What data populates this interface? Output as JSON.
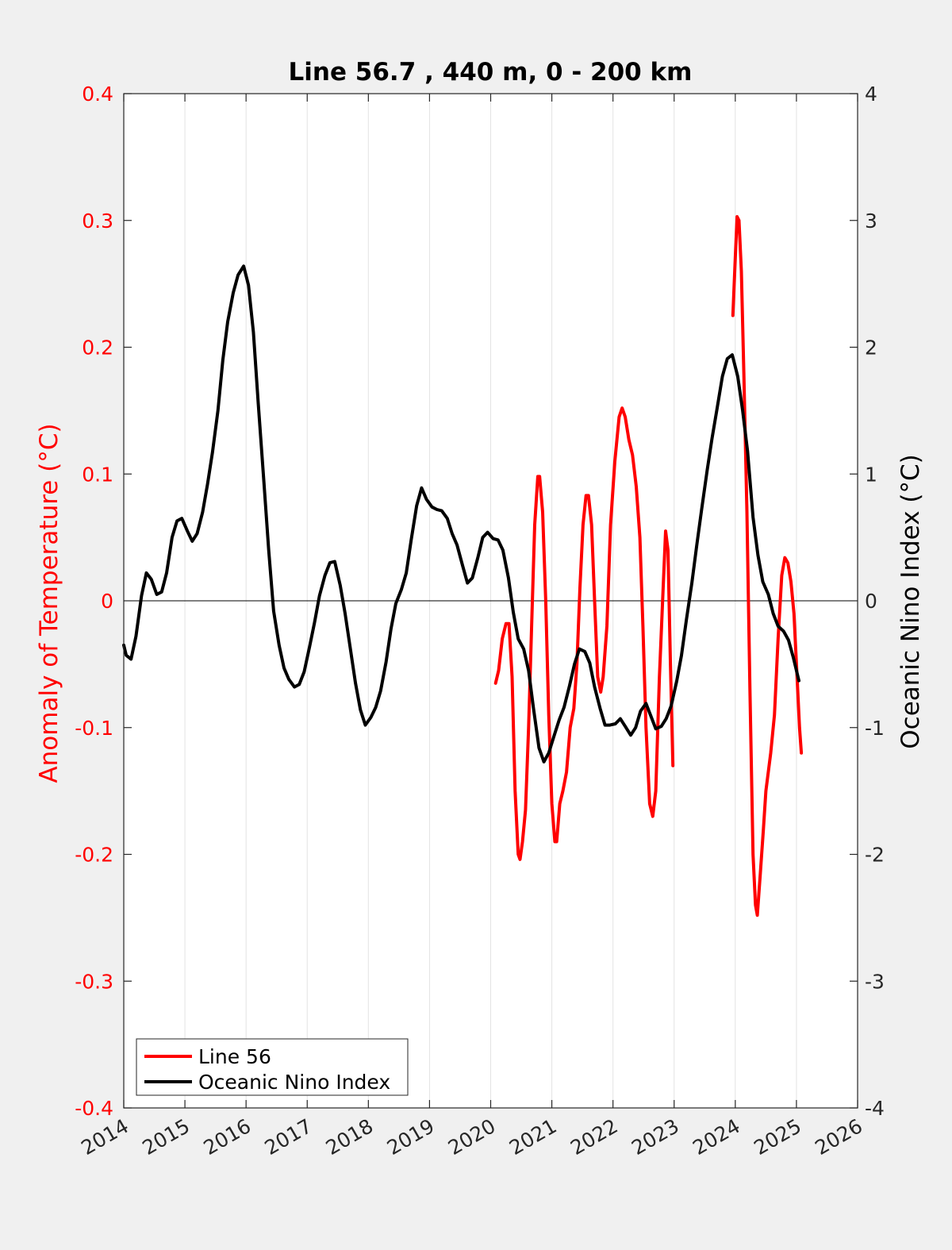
{
  "chart_data": {
    "type": "line",
    "title": "Line 56.7 , 440 m, 0 - 200 km",
    "xlabel": "",
    "ylabel_left": "Anomaly of Temperature (°C)",
    "ylabel_right": "Oceanic Nino Index (°C)",
    "xlim": [
      2014,
      2026
    ],
    "ylim_left": [
      -0.4,
      0.4
    ],
    "ylim_right": [
      -4,
      4
    ],
    "x_ticks": [
      "2014",
      "2015",
      "2016",
      "2017",
      "2018",
      "2019",
      "2020",
      "2021",
      "2022",
      "2023",
      "2024",
      "2025",
      "2026"
    ],
    "y_left_ticks": [
      "-0.4",
      "-0.3",
      "-0.2",
      "-0.1",
      "0",
      "0.1",
      "0.2",
      "0.3",
      "0.4"
    ],
    "y_right_ticks": [
      "-4",
      "-3",
      "-2",
      "-1",
      "0",
      "1",
      "2",
      "3",
      "4"
    ],
    "grid": "vertical",
    "legend_position": "bottom-left",
    "legend": [
      "Line 56",
      "Oceanic Nino Index"
    ],
    "colors": {
      "line56": "#ff0000",
      "oni": "#000000"
    },
    "series": [
      {
        "name": "Line 56",
        "axis": "left",
        "segments": [
          [
            [
              2020.08,
              -0.065
            ],
            [
              2020.13,
              -0.055
            ],
            [
              2020.19,
              -0.03
            ],
            [
              2020.25,
              -0.018
            ],
            [
              2020.3,
              -0.018
            ],
            [
              2020.35,
              -0.06
            ],
            [
              2020.4,
              -0.15
            ],
            [
              2020.45,
              -0.2
            ],
            [
              2020.48,
              -0.204
            ],
            [
              2020.52,
              -0.19
            ],
            [
              2020.57,
              -0.165
            ],
            [
              2020.62,
              -0.1
            ],
            [
              2020.67,
              -0.02
            ],
            [
              2020.72,
              0.06
            ],
            [
              2020.77,
              0.098
            ],
            [
              2020.8,
              0.098
            ],
            [
              2020.85,
              0.07
            ],
            [
              2020.9,
              0.0
            ],
            [
              2020.95,
              -0.09
            ],
            [
              2021.0,
              -0.16
            ],
            [
              2021.05,
              -0.19
            ],
            [
              2021.08,
              -0.19
            ],
            [
              2021.13,
              -0.16
            ],
            [
              2021.18,
              -0.15
            ],
            [
              2021.24,
              -0.135
            ],
            [
              2021.3,
              -0.1
            ],
            [
              2021.36,
              -0.085
            ],
            [
              2021.41,
              -0.05
            ],
            [
              2021.46,
              0.01
            ],
            [
              2021.51,
              0.06
            ],
            [
              2021.56,
              0.083
            ],
            [
              2021.6,
              0.083
            ],
            [
              2021.65,
              0.06
            ],
            [
              2021.7,
              0.0
            ],
            [
              2021.75,
              -0.06
            ],
            [
              2021.8,
              -0.072
            ],
            [
              2021.84,
              -0.06
            ],
            [
              2021.9,
              -0.02
            ],
            [
              2021.96,
              0.06
            ],
            [
              2022.03,
              0.11
            ],
            [
              2022.1,
              0.145
            ],
            [
              2022.15,
              0.152
            ],
            [
              2022.2,
              0.145
            ],
            [
              2022.26,
              0.127
            ],
            [
              2022.32,
              0.115
            ],
            [
              2022.38,
              0.09
            ],
            [
              2022.44,
              0.05
            ],
            [
              2022.49,
              -0.02
            ],
            [
              2022.54,
              -0.1
            ],
            [
              2022.6,
              -0.16
            ],
            [
              2022.65,
              -0.17
            ],
            [
              2022.7,
              -0.15
            ],
            [
              2022.76,
              -0.06
            ],
            [
              2022.82,
              0.01
            ],
            [
              2022.86,
              0.055
            ],
            [
              2022.9,
              0.04
            ],
            [
              2022.94,
              -0.05
            ],
            [
              2022.98,
              -0.13
            ]
          ],
          [
            [
              2023.96,
              0.225
            ],
            [
              2024.0,
              0.27
            ],
            [
              2024.03,
              0.303
            ],
            [
              2024.06,
              0.3
            ],
            [
              2024.1,
              0.26
            ],
            [
              2024.14,
              0.18
            ],
            [
              2024.19,
              0.07
            ],
            [
              2024.24,
              -0.07
            ],
            [
              2024.29,
              -0.2
            ],
            [
              2024.33,
              -0.24
            ],
            [
              2024.36,
              -0.248
            ],
            [
              2024.41,
              -0.215
            ],
            [
              2024.46,
              -0.18
            ],
            [
              2024.5,
              -0.15
            ],
            [
              2024.58,
              -0.12
            ],
            [
              2024.64,
              -0.09
            ],
            [
              2024.7,
              -0.03
            ],
            [
              2024.76,
              0.02
            ],
            [
              2024.81,
              0.034
            ],
            [
              2024.86,
              0.03
            ],
            [
              2024.91,
              0.015
            ],
            [
              2024.96,
              -0.01
            ],
            [
              2025.01,
              -0.06
            ],
            [
              2025.05,
              -0.1
            ],
            [
              2025.08,
              -0.12
            ]
          ]
        ]
      },
      {
        "name": "Oceanic Nino Index",
        "axis": "right",
        "segments": [
          [
            [
              2014.0,
              -0.35
            ],
            [
              2014.04,
              -0.43
            ],
            [
              2014.12,
              -0.46
            ],
            [
              2014.2,
              -0.28
            ],
            [
              2014.29,
              0.04
            ],
            [
              2014.37,
              0.22
            ],
            [
              2014.45,
              0.17
            ],
            [
              2014.54,
              0.05
            ],
            [
              2014.62,
              0.07
            ],
            [
              2014.7,
              0.22
            ],
            [
              2014.79,
              0.5
            ],
            [
              2014.87,
              0.63
            ],
            [
              2014.95,
              0.65
            ],
            [
              2015.04,
              0.55
            ],
            [
              2015.12,
              0.47
            ],
            [
              2015.2,
              0.53
            ],
            [
              2015.29,
              0.7
            ],
            [
              2015.37,
              0.92
            ],
            [
              2015.45,
              1.17
            ],
            [
              2015.54,
              1.5
            ],
            [
              2015.62,
              1.9
            ],
            [
              2015.7,
              2.2
            ],
            [
              2015.79,
              2.43
            ],
            [
              2015.87,
              2.57
            ],
            [
              2015.96,
              2.64
            ],
            [
              2016.04,
              2.49
            ],
            [
              2016.12,
              2.12
            ],
            [
              2016.2,
              1.55
            ],
            [
              2016.29,
              0.95
            ],
            [
              2016.37,
              0.4
            ],
            [
              2016.45,
              -0.08
            ],
            [
              2016.54,
              -0.35
            ],
            [
              2016.62,
              -0.53
            ],
            [
              2016.7,
              -0.62
            ],
            [
              2016.79,
              -0.68
            ],
            [
              2016.87,
              -0.66
            ],
            [
              2016.95,
              -0.56
            ],
            [
              2017.04,
              -0.36
            ],
            [
              2017.12,
              -0.17
            ],
            [
              2017.2,
              0.04
            ],
            [
              2017.29,
              0.2
            ],
            [
              2017.37,
              0.3
            ],
            [
              2017.45,
              0.31
            ],
            [
              2017.54,
              0.12
            ],
            [
              2017.62,
              -0.1
            ],
            [
              2017.7,
              -0.36
            ],
            [
              2017.79,
              -0.65
            ],
            [
              2017.87,
              -0.86
            ],
            [
              2017.95,
              -0.98
            ],
            [
              2018.04,
              -0.92
            ],
            [
              2018.12,
              -0.84
            ],
            [
              2018.2,
              -0.71
            ],
            [
              2018.29,
              -0.48
            ],
            [
              2018.37,
              -0.22
            ],
            [
              2018.45,
              -0.02
            ],
            [
              2018.54,
              0.09
            ],
            [
              2018.62,
              0.22
            ],
            [
              2018.7,
              0.48
            ],
            [
              2018.79,
              0.75
            ],
            [
              2018.87,
              0.89
            ],
            [
              2018.95,
              0.8
            ],
            [
              2019.04,
              0.74
            ],
            [
              2019.12,
              0.72
            ],
            [
              2019.2,
              0.71
            ],
            [
              2019.29,
              0.65
            ],
            [
              2019.37,
              0.53
            ],
            [
              2019.45,
              0.44
            ],
            [
              2019.54,
              0.28
            ],
            [
              2019.62,
              0.14
            ],
            [
              2019.7,
              0.18
            ],
            [
              2019.79,
              0.34
            ],
            [
              2019.87,
              0.5
            ],
            [
              2019.95,
              0.54
            ],
            [
              2020.04,
              0.49
            ],
            [
              2020.12,
              0.48
            ],
            [
              2020.2,
              0.4
            ],
            [
              2020.29,
              0.18
            ],
            [
              2020.37,
              -0.09
            ],
            [
              2020.45,
              -0.3
            ],
            [
              2020.54,
              -0.38
            ],
            [
              2020.62,
              -0.55
            ],
            [
              2020.7,
              -0.85
            ],
            [
              2020.79,
              -1.16
            ],
            [
              2020.87,
              -1.27
            ],
            [
              2020.95,
              -1.2
            ],
            [
              2021.04,
              -1.06
            ],
            [
              2021.12,
              -0.94
            ],
            [
              2021.2,
              -0.84
            ],
            [
              2021.29,
              -0.67
            ],
            [
              2021.37,
              -0.5
            ],
            [
              2021.45,
              -0.38
            ],
            [
              2021.54,
              -0.4
            ],
            [
              2021.62,
              -0.49
            ],
            [
              2021.7,
              -0.68
            ],
            [
              2021.79,
              -0.85
            ],
            [
              2021.87,
              -0.98
            ],
            [
              2021.95,
              -0.98
            ],
            [
              2022.04,
              -0.97
            ],
            [
              2022.12,
              -0.93
            ],
            [
              2022.2,
              -0.99
            ],
            [
              2022.29,
              -1.06
            ],
            [
              2022.37,
              -1.0
            ],
            [
              2022.45,
              -0.87
            ],
            [
              2022.54,
              -0.81
            ],
            [
              2022.62,
              -0.91
            ],
            [
              2022.7,
              -1.01
            ],
            [
              2022.79,
              -0.99
            ],
            [
              2022.87,
              -0.93
            ],
            [
              2022.95,
              -0.83
            ],
            [
              2023.04,
              -0.64
            ],
            [
              2023.12,
              -0.43
            ],
            [
              2023.2,
              -0.15
            ],
            [
              2023.29,
              0.14
            ],
            [
              2023.37,
              0.44
            ],
            [
              2023.45,
              0.72
            ],
            [
              2023.54,
              1.03
            ],
            [
              2023.62,
              1.28
            ],
            [
              2023.7,
              1.51
            ],
            [
              2023.79,
              1.77
            ],
            [
              2023.87,
              1.91
            ],
            [
              2023.95,
              1.94
            ],
            [
              2024.04,
              1.77
            ],
            [
              2024.12,
              1.5
            ],
            [
              2024.2,
              1.18
            ],
            [
              2024.29,
              0.66
            ],
            [
              2024.37,
              0.36
            ],
            [
              2024.45,
              0.15
            ],
            [
              2024.54,
              0.05
            ],
            [
              2024.62,
              -0.1
            ],
            [
              2024.7,
              -0.2
            ],
            [
              2024.79,
              -0.24
            ],
            [
              2024.87,
              -0.31
            ],
            [
              2024.95,
              -0.45
            ],
            [
              2025.04,
              -0.63
            ]
          ]
        ]
      }
    ]
  }
}
